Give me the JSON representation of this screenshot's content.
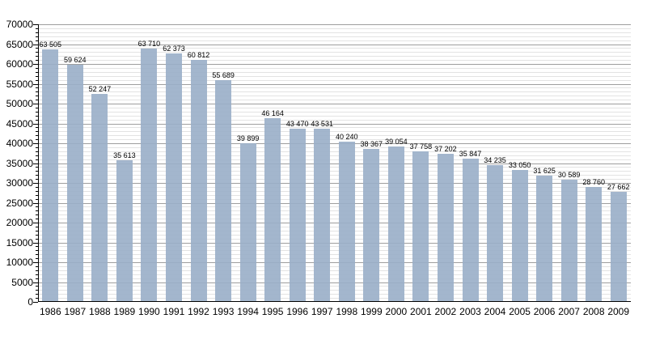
{
  "chart_data": {
    "type": "bar",
    "title": "",
    "xlabel": "",
    "ylabel": "",
    "categories": [
      "1986",
      "1987",
      "1988",
      "1989",
      "1990",
      "1991",
      "1992",
      "1993",
      "1994",
      "1995",
      "1996",
      "1997",
      "1998",
      "1999",
      "2000",
      "2001",
      "2002",
      "2003",
      "2004",
      "2005",
      "2006",
      "2007",
      "2008",
      "2009"
    ],
    "values": [
      63505,
      59624,
      52247,
      35613,
      63710,
      62373,
      60812,
      55689,
      39899,
      46164,
      43470,
      43531,
      40240,
      38367,
      39054,
      37758,
      37202,
      35847,
      34235,
      33050,
      31625,
      30589,
      28760,
      27662
    ],
    "value_labels": [
      "63 505",
      "59 624",
      "52 247",
      "35 613",
      "63 710",
      "62 373",
      "60 812",
      "55 689",
      "39 899",
      "46 164",
      "43 470",
      "43 531",
      "40 240",
      "38 367",
      "39 054",
      "37 758",
      "37 202",
      "35 847",
      "34 235",
      "33 050",
      "31 625",
      "30 589",
      "28 760",
      "27 662"
    ],
    "ylim": [
      0,
      70000
    ],
    "ytick_major": 5000,
    "ytick_minor": 1000,
    "ytick_labels": [
      "0",
      "5000",
      "10000",
      "15000",
      "20000",
      "25000",
      "30000",
      "35000",
      "40000",
      "45000",
      "50000",
      "55000",
      "60000",
      "65000",
      "70000"
    ],
    "grid": "on",
    "legend": "none",
    "colors": {
      "bar": "#99aec8",
      "gridline_major": "#9e9e9e",
      "gridline_minor": "#e3e3e3",
      "axis": "#000000",
      "text": "#000000"
    }
  }
}
